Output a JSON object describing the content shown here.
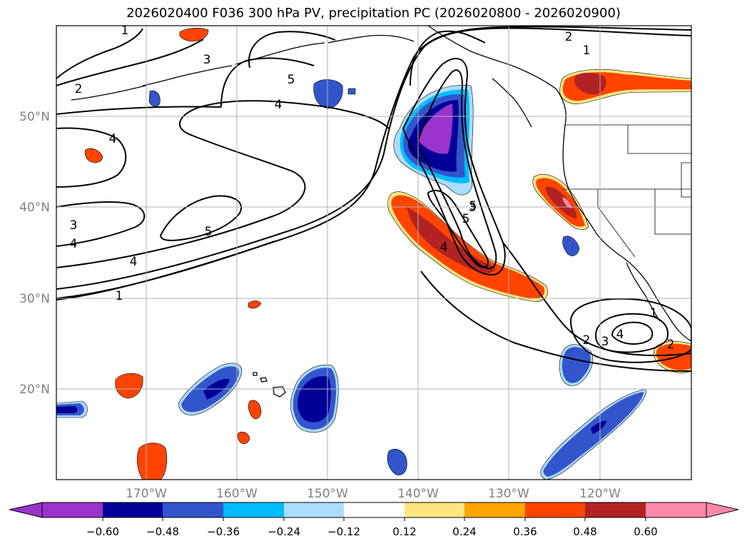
{
  "title": "2026020400 F036 300 hPa PV, precipitation PC (2026020800 - 2026020900)",
  "map": {
    "lat_labels": [
      "50°N",
      "40°N",
      "30°N",
      "20°N"
    ],
    "lon_labels": [
      "170°W",
      "160°W",
      "150°W",
      "140°W",
      "130°W",
      "120°W"
    ],
    "grid": true
  },
  "contour_labels": [
    "1",
    "2",
    "3",
    "4",
    "5",
    "2",
    "1",
    "4",
    "5",
    "5",
    "3",
    "4",
    "4",
    "1",
    "5",
    "4",
    "3",
    "1",
    "2",
    "3",
    "4",
    "2"
  ],
  "colorbar": {
    "ticks": [
      "−0.60",
      "−0.48",
      "−0.36",
      "−0.24",
      "−0.12",
      "0.12",
      "0.24",
      "0.36",
      "0.48",
      "0.60"
    ],
    "colors": [
      "#9933cc",
      "#000099",
      "#3355cc",
      "#00bbff",
      "#aaddff",
      "#ffffff",
      "#ffe680",
      "#ffa500",
      "#ff4400",
      "#b22222",
      "#ff88aa"
    ]
  }
}
